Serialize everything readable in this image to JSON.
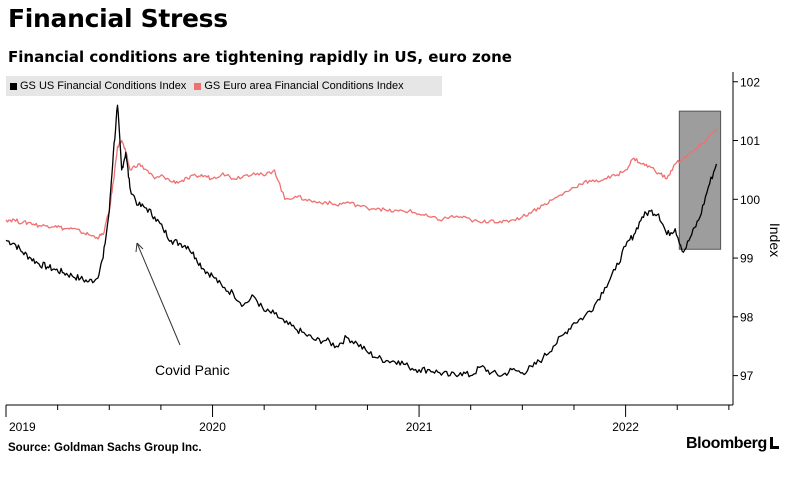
{
  "title": "Financial Stress",
  "subtitle": "Financial conditions are tightening rapidly in US, euro zone",
  "source": "Source: Goldman Sachs Group Inc.",
  "brand": "Bloomberg",
  "colors": {
    "us": "#000000",
    "euro": "#f07070",
    "shade": "#8c8c8c"
  },
  "chart_data": {
    "type": "line",
    "title": "Financial Stress",
    "xlabel": "",
    "ylabel": "Index",
    "ylim": [
      96.5,
      102.2
    ],
    "xlim": [
      2019.0,
      2022.52
    ],
    "y_ticks": [
      "97",
      "98",
      "99",
      "100",
      "101",
      "102"
    ],
    "x_ticks": [
      {
        "label": "2019",
        "value": 2019.0
      },
      {
        "label": "2020",
        "value": 2020.0
      },
      {
        "label": "2021",
        "value": 2021.0
      },
      {
        "label": "2022",
        "value": 2022.0
      }
    ],
    "legend": [
      "GS US Financial Conditions Index",
      "GS Euro area Financial Conditions Index"
    ],
    "series": [
      {
        "name": "GS US Financial Conditions Index",
        "x": [
          2019.0,
          2019.04,
          2019.08,
          2019.12,
          2019.16,
          2019.2,
          2019.24,
          2019.28,
          2019.32,
          2019.36,
          2019.4,
          2019.44,
          2019.47,
          2019.5,
          2019.52,
          2019.54,
          2019.56,
          2019.58,
          2019.6,
          2019.64,
          2019.68,
          2019.72,
          2019.76,
          2019.8,
          2019.84,
          2019.88,
          2019.92,
          2019.96,
          2020.0,
          2020.05,
          2020.1,
          2020.15,
          2020.2,
          2020.25,
          2020.3,
          2020.35,
          2020.4,
          2020.45,
          2020.5,
          2020.55,
          2020.6,
          2020.65,
          2020.7,
          2020.75,
          2020.8,
          2020.85,
          2020.9,
          2020.95,
          2021.0,
          2021.05,
          2021.1,
          2021.15,
          2021.2,
          2021.25,
          2021.3,
          2021.35,
          2021.4,
          2021.45,
          2021.5,
          2021.55,
          2021.6,
          2021.65,
          2021.7,
          2021.75,
          2021.8,
          2021.85,
          2021.9,
          2021.95,
          2022.0,
          2022.04,
          2022.08,
          2022.12,
          2022.16,
          2022.2,
          2022.24,
          2022.28,
          2022.32,
          2022.36,
          2022.4,
          2022.44
        ],
        "values": [
          99.3,
          99.25,
          99.1,
          99.0,
          98.9,
          98.85,
          98.8,
          98.75,
          98.7,
          98.65,
          98.6,
          98.65,
          99.0,
          99.8,
          100.8,
          101.6,
          100.5,
          100.8,
          100.2,
          99.9,
          99.85,
          99.7,
          99.5,
          99.3,
          99.25,
          99.2,
          99.0,
          98.8,
          98.7,
          98.5,
          98.4,
          98.2,
          98.35,
          98.1,
          98.05,
          97.9,
          97.8,
          97.7,
          97.6,
          97.6,
          97.5,
          97.65,
          97.55,
          97.4,
          97.3,
          97.25,
          97.25,
          97.15,
          97.1,
          97.1,
          97.05,
          97.0,
          97.05,
          97.0,
          97.15,
          97.05,
          97.0,
          97.1,
          97.05,
          97.15,
          97.3,
          97.5,
          97.7,
          97.9,
          98.0,
          98.2,
          98.5,
          98.8,
          99.2,
          99.4,
          99.7,
          99.8,
          99.75,
          99.4,
          99.5,
          99.1,
          99.4,
          99.7,
          100.2,
          100.6
        ]
      },
      {
        "name": "GS Euro area Financial Conditions Index",
        "x": [
          2019.0,
          2019.04,
          2019.08,
          2019.12,
          2019.16,
          2019.2,
          2019.24,
          2019.28,
          2019.32,
          2019.36,
          2019.4,
          2019.44,
          2019.47,
          2019.5,
          2019.52,
          2019.54,
          2019.56,
          2019.58,
          2019.6,
          2019.64,
          2019.68,
          2019.72,
          2019.76,
          2019.8,
          2019.84,
          2019.88,
          2019.92,
          2019.96,
          2020.0,
          2020.05,
          2020.1,
          2020.15,
          2020.2,
          2020.25,
          2020.3,
          2020.35,
          2020.4,
          2020.45,
          2020.5,
          2020.55,
          2020.6,
          2020.65,
          2020.7,
          2020.75,
          2020.8,
          2020.85,
          2020.9,
          2020.95,
          2021.0,
          2021.05,
          2021.1,
          2021.15,
          2021.2,
          2021.25,
          2021.3,
          2021.35,
          2021.4,
          2021.45,
          2021.5,
          2021.55,
          2021.6,
          2021.65,
          2021.7,
          2021.75,
          2021.8,
          2021.85,
          2021.9,
          2021.95,
          2022.0,
          2022.04,
          2022.08,
          2022.12,
          2022.16,
          2022.2,
          2022.24,
          2022.28,
          2022.32,
          2022.36,
          2022.4,
          2022.44
        ],
        "values": [
          99.65,
          99.65,
          99.6,
          99.6,
          99.55,
          99.55,
          99.55,
          99.5,
          99.5,
          99.45,
          99.4,
          99.35,
          99.4,
          99.8,
          100.3,
          100.9,
          101.0,
          100.8,
          100.5,
          100.6,
          100.5,
          100.35,
          100.4,
          100.3,
          100.3,
          100.35,
          100.4,
          100.4,
          100.35,
          100.45,
          100.35,
          100.4,
          100.45,
          100.4,
          100.5,
          100.0,
          100.05,
          100.0,
          99.95,
          99.95,
          99.9,
          99.95,
          99.9,
          99.85,
          99.85,
          99.8,
          99.8,
          99.8,
          99.75,
          99.7,
          99.65,
          99.7,
          99.7,
          99.65,
          99.6,
          99.65,
          99.6,
          99.65,
          99.7,
          99.8,
          99.9,
          100.0,
          100.1,
          100.2,
          100.3,
          100.3,
          100.35,
          100.4,
          100.5,
          100.7,
          100.6,
          100.55,
          100.45,
          100.35,
          100.6,
          100.7,
          100.8,
          100.9,
          101.05,
          101.2
        ]
      }
    ],
    "shaded_region": {
      "x": [
        2022.26,
        2022.46
      ],
      "y": [
        99.15,
        101.5
      ]
    },
    "annotations": [
      {
        "text": "Covid Panic",
        "x": 2019.75,
        "y": 97.0
      }
    ]
  }
}
